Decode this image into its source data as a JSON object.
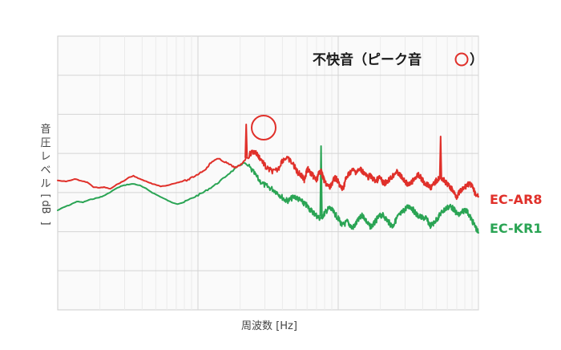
{
  "chart_data": {
    "type": "line",
    "title": "不快音（ピーク音",
    "xlabel": "周波数 [Hz]",
    "ylabel_chars": [
      "音",
      "圧",
      "レ",
      "ベ",
      "ル"
    ],
    "ylabel_unit": "dB",
    "x_scale": "log",
    "grid": true,
    "legend_placement": "right",
    "annotation": "peak-circle",
    "colors": {
      "red": "#e0302a",
      "green": "#2aa454",
      "circle": "#e0302a"
    },
    "series": [
      {
        "name": "EC-AR8",
        "color": "#e0302a",
        "points": [
          [
            0.0,
            225
          ],
          [
            0.02,
            226
          ],
          [
            0.04,
            223
          ],
          [
            0.055,
            225
          ],
          [
            0.07,
            227
          ],
          [
            0.085,
            233
          ],
          [
            0.1,
            234
          ],
          [
            0.11,
            233
          ],
          [
            0.125,
            235
          ],
          [
            0.14,
            230
          ],
          [
            0.155,
            226
          ],
          [
            0.17,
            221
          ],
          [
            0.18,
            219
          ],
          [
            0.195,
            223
          ],
          [
            0.21,
            226
          ],
          [
            0.225,
            229
          ],
          [
            0.245,
            232
          ],
          [
            0.26,
            231
          ],
          [
            0.28,
            228
          ],
          [
            0.295,
            226
          ],
          [
            0.31,
            224
          ],
          [
            0.32,
            221
          ],
          [
            0.33,
            218
          ],
          [
            0.342,
            214
          ],
          [
            0.355,
            209
          ],
          [
            0.362,
            204
          ],
          [
            0.37,
            200
          ],
          [
            0.382,
            198
          ],
          [
            0.395,
            201
          ],
          [
            0.405,
            204
          ],
          [
            0.415,
            207
          ],
          [
            0.425,
            209
          ],
          [
            0.435,
            205
          ],
          [
            0.445,
            199
          ],
          [
            0.455,
            193
          ],
          [
            0.463,
            189
          ],
          [
            0.47,
            190
          ],
          [
            0.478,
            195
          ],
          [
            0.488,
            202
          ],
          [
            0.495,
            209
          ],
          [
            0.505,
            212
          ],
          [
            0.515,
            214
          ],
          [
            0.525,
            210
          ],
          [
            0.532,
            201
          ],
          [
            0.54,
            197
          ],
          [
            0.55,
            199
          ],
          [
            0.56,
            205
          ],
          [
            0.566,
            211
          ],
          [
            0.571,
            215
          ],
          [
            0.576,
            217
          ],
          [
            0.58,
            219
          ],
          [
            0.583,
            222
          ],
          [
            0.586,
            224
          ],
          [
            0.589,
            218
          ],
          [
            0.592,
            213
          ],
          [
            0.595,
            211
          ],
          [
            0.6,
            215
          ],
          [
            0.605,
            218
          ],
          [
            0.61,
            221
          ],
          [
            0.615,
            225
          ],
          [
            0.62,
            217
          ],
          [
            0.624,
            213
          ],
          [
            0.627,
            215
          ],
          [
            0.63,
            220
          ],
          [
            0.634,
            226
          ],
          [
            0.64,
            230
          ],
          [
            0.647,
            234
          ],
          [
            0.652,
            228
          ],
          [
            0.656,
            224
          ],
          [
            0.66,
            222
          ],
          [
            0.664,
            224
          ],
          [
            0.668,
            228
          ],
          [
            0.672,
            233
          ],
          [
            0.676,
            235
          ],
          [
            0.68,
            232
          ],
          [
            0.684,
            224
          ],
          [
            0.69,
            218
          ],
          [
            0.696,
            214
          ],
          [
            0.702,
            212
          ],
          [
            0.708,
            214
          ],
          [
            0.714,
            213
          ],
          [
            0.72,
            211
          ],
          [
            0.726,
            214
          ],
          [
            0.732,
            218
          ],
          [
            0.737,
            221
          ],
          [
            0.742,
            219
          ],
          [
            0.748,
            222
          ],
          [
            0.754,
            225
          ],
          [
            0.76,
            224
          ],
          [
            0.765,
            221
          ],
          [
            0.77,
            225
          ],
          [
            0.775,
            229
          ],
          [
            0.78,
            227
          ],
          [
            0.786,
            224
          ],
          [
            0.792,
            222
          ],
          [
            0.798,
            218
          ],
          [
            0.804,
            214
          ],
          [
            0.81,
            216
          ],
          [
            0.816,
            220
          ],
          [
            0.822,
            224
          ],
          [
            0.828,
            227
          ],
          [
            0.834,
            231
          ],
          [
            0.84,
            228
          ],
          [
            0.846,
            224
          ],
          [
            0.852,
            220
          ],
          [
            0.858,
            218
          ],
          [
            0.864,
            222
          ],
          [
            0.87,
            227
          ],
          [
            0.876,
            229
          ],
          [
            0.882,
            231
          ],
          [
            0.888,
            234
          ],
          [
            0.894,
            229
          ],
          [
            0.9,
            225
          ],
          [
            0.906,
            222
          ],
          [
            0.912,
            221
          ],
          [
            0.918,
            225
          ],
          [
            0.924,
            228
          ],
          [
            0.93,
            232
          ],
          [
            0.936,
            235
          ],
          [
            0.942,
            240
          ],
          [
            0.948,
            245
          ],
          [
            0.953,
            241
          ],
          [
            0.958,
            238
          ],
          [
            0.963,
            236
          ],
          [
            0.968,
            233
          ],
          [
            0.973,
            230
          ],
          [
            0.978,
            229
          ],
          [
            0.983,
            231
          ],
          [
            0.988,
            236
          ],
          [
            0.993,
            242
          ],
          [
            1.0,
            245
          ]
        ]
      },
      {
        "name": "EC-KR1",
        "color": "#2aa454",
        "points": [
          [
            0.0,
            262
          ],
          [
            0.015,
            258
          ],
          [
            0.03,
            255
          ],
          [
            0.045,
            251
          ],
          [
            0.06,
            252
          ],
          [
            0.075,
            249
          ],
          [
            0.09,
            247
          ],
          [
            0.105,
            245
          ],
          [
            0.12,
            241
          ],
          [
            0.135,
            236
          ],
          [
            0.15,
            232
          ],
          [
            0.165,
            230
          ],
          [
            0.18,
            229
          ],
          [
            0.195,
            231
          ],
          [
            0.21,
            235
          ],
          [
            0.225,
            240
          ],
          [
            0.24,
            244
          ],
          [
            0.255,
            248
          ],
          [
            0.27,
            252
          ],
          [
            0.285,
            254
          ],
          [
            0.3,
            252
          ],
          [
            0.315,
            248
          ],
          [
            0.33,
            244
          ],
          [
            0.345,
            240
          ],
          [
            0.36,
            235
          ],
          [
            0.375,
            230
          ],
          [
            0.39,
            224
          ],
          [
            0.405,
            217
          ],
          [
            0.42,
            211
          ],
          [
            0.432,
            206
          ],
          [
            0.443,
            203
          ],
          [
            0.455,
            208
          ],
          [
            0.467,
            216
          ],
          [
            0.478,
            224
          ],
          [
            0.49,
            230
          ],
          [
            0.5,
            233
          ],
          [
            0.512,
            236
          ],
          [
            0.522,
            240
          ],
          [
            0.532,
            245
          ],
          [
            0.54,
            249
          ],
          [
            0.548,
            250
          ],
          [
            0.556,
            247
          ],
          [
            0.564,
            245
          ],
          [
            0.572,
            248
          ],
          [
            0.58,
            251
          ],
          [
            0.586,
            254
          ],
          [
            0.592,
            256
          ],
          [
            0.598,
            260
          ],
          [
            0.604,
            263
          ],
          [
            0.61,
            266
          ],
          [
            0.616,
            269
          ],
          [
            0.622,
            272
          ],
          [
            0.628,
            270
          ],
          [
            0.634,
            266
          ],
          [
            0.64,
            262
          ],
          [
            0.646,
            259
          ],
          [
            0.652,
            262
          ],
          [
            0.658,
            266
          ],
          [
            0.664,
            270
          ],
          [
            0.67,
            275
          ],
          [
            0.676,
            281
          ],
          [
            0.682,
            279
          ],
          [
            0.688,
            276
          ],
          [
            0.694,
            280
          ],
          [
            0.7,
            284
          ],
          [
            0.706,
            281
          ],
          [
            0.712,
            276
          ],
          [
            0.718,
            272
          ],
          [
            0.724,
            268
          ],
          [
            0.73,
            272
          ],
          [
            0.736,
            278
          ],
          [
            0.742,
            282
          ],
          [
            0.748,
            281
          ],
          [
            0.754,
            277
          ],
          [
            0.76,
            272
          ],
          [
            0.766,
            269
          ],
          [
            0.772,
            268
          ],
          [
            0.778,
            271
          ],
          [
            0.784,
            275
          ],
          [
            0.79,
            279
          ],
          [
            0.796,
            282
          ],
          [
            0.802,
            276
          ],
          [
            0.808,
            270
          ],
          [
            0.814,
            267
          ],
          [
            0.82,
            264
          ],
          [
            0.826,
            260
          ],
          [
            0.832,
            258
          ],
          [
            0.838,
            257
          ],
          [
            0.844,
            261
          ],
          [
            0.85,
            265
          ],
          [
            0.856,
            269
          ],
          [
            0.862,
            270
          ],
          [
            0.868,
            272
          ],
          [
            0.874,
            271
          ],
          [
            0.88,
            276
          ],
          [
            0.886,
            281
          ],
          [
            0.892,
            279
          ],
          [
            0.898,
            275
          ],
          [
            0.904,
            271
          ],
          [
            0.91,
            266
          ],
          [
            0.916,
            263
          ],
          [
            0.922,
            260
          ],
          [
            0.928,
            258
          ],
          [
            0.934,
            257
          ],
          [
            0.94,
            260
          ],
          [
            0.946,
            264
          ],
          [
            0.952,
            268
          ],
          [
            0.958,
            266
          ],
          [
            0.964,
            263
          ],
          [
            0.97,
            261
          ],
          [
            0.976,
            266
          ],
          [
            0.982,
            272
          ],
          [
            0.988,
            278
          ],
          [
            0.994,
            284
          ],
          [
            1.0,
            290
          ]
        ]
      }
    ],
    "spikes": [
      {
        "series": "EC-AR8",
        "at": 0.448,
        "peak": 155
      },
      {
        "series": "EC-KR1",
        "at": 0.626,
        "peak": 182
      },
      {
        "series": "EC-AR8",
        "at": 0.91,
        "peak": 170
      }
    ]
  }
}
